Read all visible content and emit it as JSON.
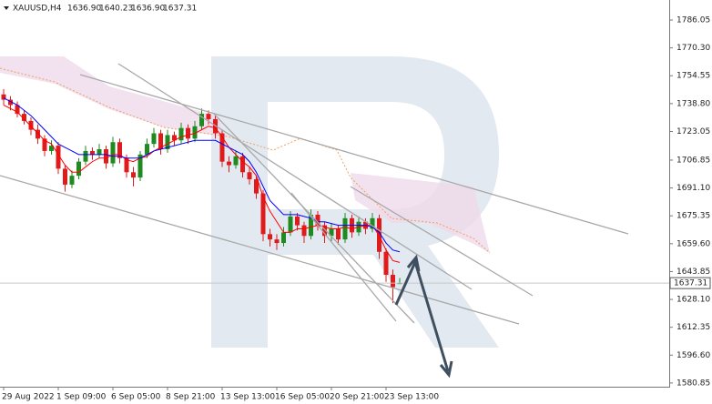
{
  "chart_data": {
    "type": "candlestick",
    "symbol": "XAUUSD,H4",
    "last_labels": [
      "1636.90",
      "1640.23",
      "1636.90",
      "1637.31"
    ],
    "up_color": "#1f8a1f",
    "down_color": "#e01b1b",
    "categories": [
      "29 Aug 2022",
      null,
      null,
      null,
      null,
      null,
      null,
      null,
      "1 Sep 09:00",
      null,
      null,
      null,
      null,
      null,
      null,
      null,
      "6 Sep 05:00",
      null,
      null,
      null,
      null,
      null,
      null,
      null,
      "8 Sep 21:00",
      null,
      null,
      null,
      null,
      null,
      null,
      null,
      "13 Sep 13:00",
      null,
      null,
      null,
      null,
      null,
      null,
      null,
      "16 Sep 05:00",
      null,
      null,
      null,
      null,
      null,
      null,
      null,
      "20 Sep 21:00",
      null,
      null,
      null,
      null,
      null,
      null,
      null,
      "23 Sep 13:00",
      null,
      null
    ],
    "ohlc": [
      [
        1744,
        1747,
        1738,
        1741
      ],
      [
        1741,
        1743,
        1735,
        1738
      ],
      [
        1738,
        1740,
        1731,
        1733
      ],
      [
        1733,
        1735,
        1727,
        1729
      ],
      [
        1729,
        1731,
        1721,
        1724
      ],
      [
        1724,
        1727,
        1716,
        1719
      ],
      [
        1719,
        1721,
        1709,
        1712
      ],
      [
        1712,
        1718,
        1710,
        1715
      ],
      [
        1715,
        1717,
        1699,
        1702
      ],
      [
        1702,
        1704,
        1689,
        1693
      ],
      [
        1693,
        1701,
        1691,
        1698
      ],
      [
        1698,
        1708,
        1696,
        1706
      ],
      [
        1706,
        1715,
        1704,
        1712
      ],
      [
        1712,
        1714,
        1707,
        1710
      ],
      [
        1710,
        1716,
        1708,
        1713
      ],
      [
        1713,
        1715,
        1702,
        1705
      ],
      [
        1705,
        1720,
        1703,
        1717
      ],
      [
        1717,
        1719,
        1705,
        1708
      ],
      [
        1708,
        1710,
        1697,
        1700
      ],
      [
        1700,
        1703,
        1692,
        1697
      ],
      [
        1697,
        1712,
        1695,
        1710
      ],
      [
        1710,
        1719,
        1708,
        1716
      ],
      [
        1716,
        1725,
        1714,
        1722
      ],
      [
        1722,
        1724,
        1710,
        1713
      ],
      [
        1713,
        1724,
        1711,
        1721
      ],
      [
        1721,
        1723,
        1715,
        1718
      ],
      [
        1718,
        1728,
        1716,
        1725
      ],
      [
        1725,
        1727,
        1716,
        1719
      ],
      [
        1719,
        1729,
        1717,
        1726
      ],
      [
        1726,
        1736,
        1724,
        1733
      ],
      [
        1733,
        1735,
        1727,
        1730
      ],
      [
        1730,
        1732,
        1719,
        1722
      ],
      [
        1722,
        1724,
        1703,
        1706
      ],
      [
        1706,
        1709,
        1700,
        1704
      ],
      [
        1704,
        1712,
        1702,
        1709
      ],
      [
        1709,
        1711,
        1697,
        1700
      ],
      [
        1700,
        1703,
        1693,
        1696
      ],
      [
        1696,
        1698,
        1685,
        1688
      ],
      [
        1688,
        1690,
        1661,
        1665
      ],
      [
        1665,
        1668,
        1658,
        1662
      ],
      [
        1662,
        1665,
        1656,
        1660
      ],
      [
        1660,
        1669,
        1658,
        1666
      ],
      [
        1666,
        1678,
        1664,
        1675
      ],
      [
        1675,
        1677,
        1667,
        1670
      ],
      [
        1670,
        1672,
        1660,
        1664
      ],
      [
        1664,
        1679,
        1662,
        1676
      ],
      [
        1676,
        1678,
        1667,
        1670
      ],
      [
        1670,
        1672,
        1660,
        1664
      ],
      [
        1664,
        1671,
        1661,
        1668
      ],
      [
        1668,
        1670,
        1659,
        1662
      ],
      [
        1662,
        1677,
        1660,
        1674
      ],
      [
        1674,
        1676,
        1663,
        1666
      ],
      [
        1666,
        1675,
        1664,
        1672
      ],
      [
        1672,
        1674,
        1665,
        1668
      ],
      [
        1668,
        1677,
        1666,
        1674
      ],
      [
        1674,
        1676,
        1651,
        1655
      ],
      [
        1655,
        1657,
        1638,
        1642
      ],
      [
        1642,
        1645,
        1626,
        1635
      ],
      [
        1636.9,
        1640.23,
        1636.9,
        1637.31
      ]
    ],
    "lines": [
      {
        "color": "#ff0000",
        "values": [
          1738,
          1736,
          1734,
          1730,
          1726,
          1722,
          1718,
          1716,
          1710,
          1704,
          1700,
          1700,
          1703,
          1706,
          1708,
          1708,
          1710,
          1710,
          1707,
          1706,
          1708,
          1709,
          1712,
          1714,
          1716,
          1718,
          1720,
          1721,
          1722,
          1724,
          1726,
          1725,
          1720,
          1714,
          1710,
          1706,
          1703,
          1698,
          1686,
          1678,
          1672,
          1666,
          1666,
          1668,
          1668,
          1669,
          1670,
          1669,
          1668,
          1668,
          1669,
          1668,
          1669,
          1670,
          1670,
          1664,
          1656,
          1650,
          1649
        ]
      },
      {
        "color": "#0000ff",
        "values": [
          1742,
          1740,
          1738,
          1735,
          1732,
          1728,
          1724,
          1720,
          1716,
          1714,
          1712,
          1710,
          1710,
          1710,
          1710,
          1710,
          1709,
          1709,
          1708,
          1708,
          1708,
          1710,
          1712,
          1713,
          1714,
          1715,
          1716,
          1717,
          1718,
          1718,
          1718,
          1718,
          1716,
          1714,
          1712,
          1710,
          1706,
          1700,
          1692,
          1684,
          1680,
          1676,
          1676,
          1676,
          1675,
          1674,
          1672,
          1672,
          1671,
          1670,
          1670,
          1670,
          1670,
          1670,
          1669,
          1666,
          1660,
          1656,
          1655
        ]
      }
    ],
    "ylim": [
      1578.74,
      1797.37
    ],
    "yticks": [
      1786.05,
      {
        "value": 1770.3,
        "label": "1770.30"
      },
      1754.55,
      {
        "value": 1738.8,
        "label": "1738.80"
      },
      1723.05,
      1706.85,
      {
        "value": 1691.1,
        "label": "1691.10"
      },
      1675.35,
      {
        "value": 1659.6,
        "label": "1659.60"
      },
      1643.85,
      {
        "value": 1628.1,
        "label": "1628.10"
      },
      1612.35,
      {
        "value": 1596.6,
        "label": "1596.60"
      },
      1580.85
    ],
    "grid": false
  }
}
